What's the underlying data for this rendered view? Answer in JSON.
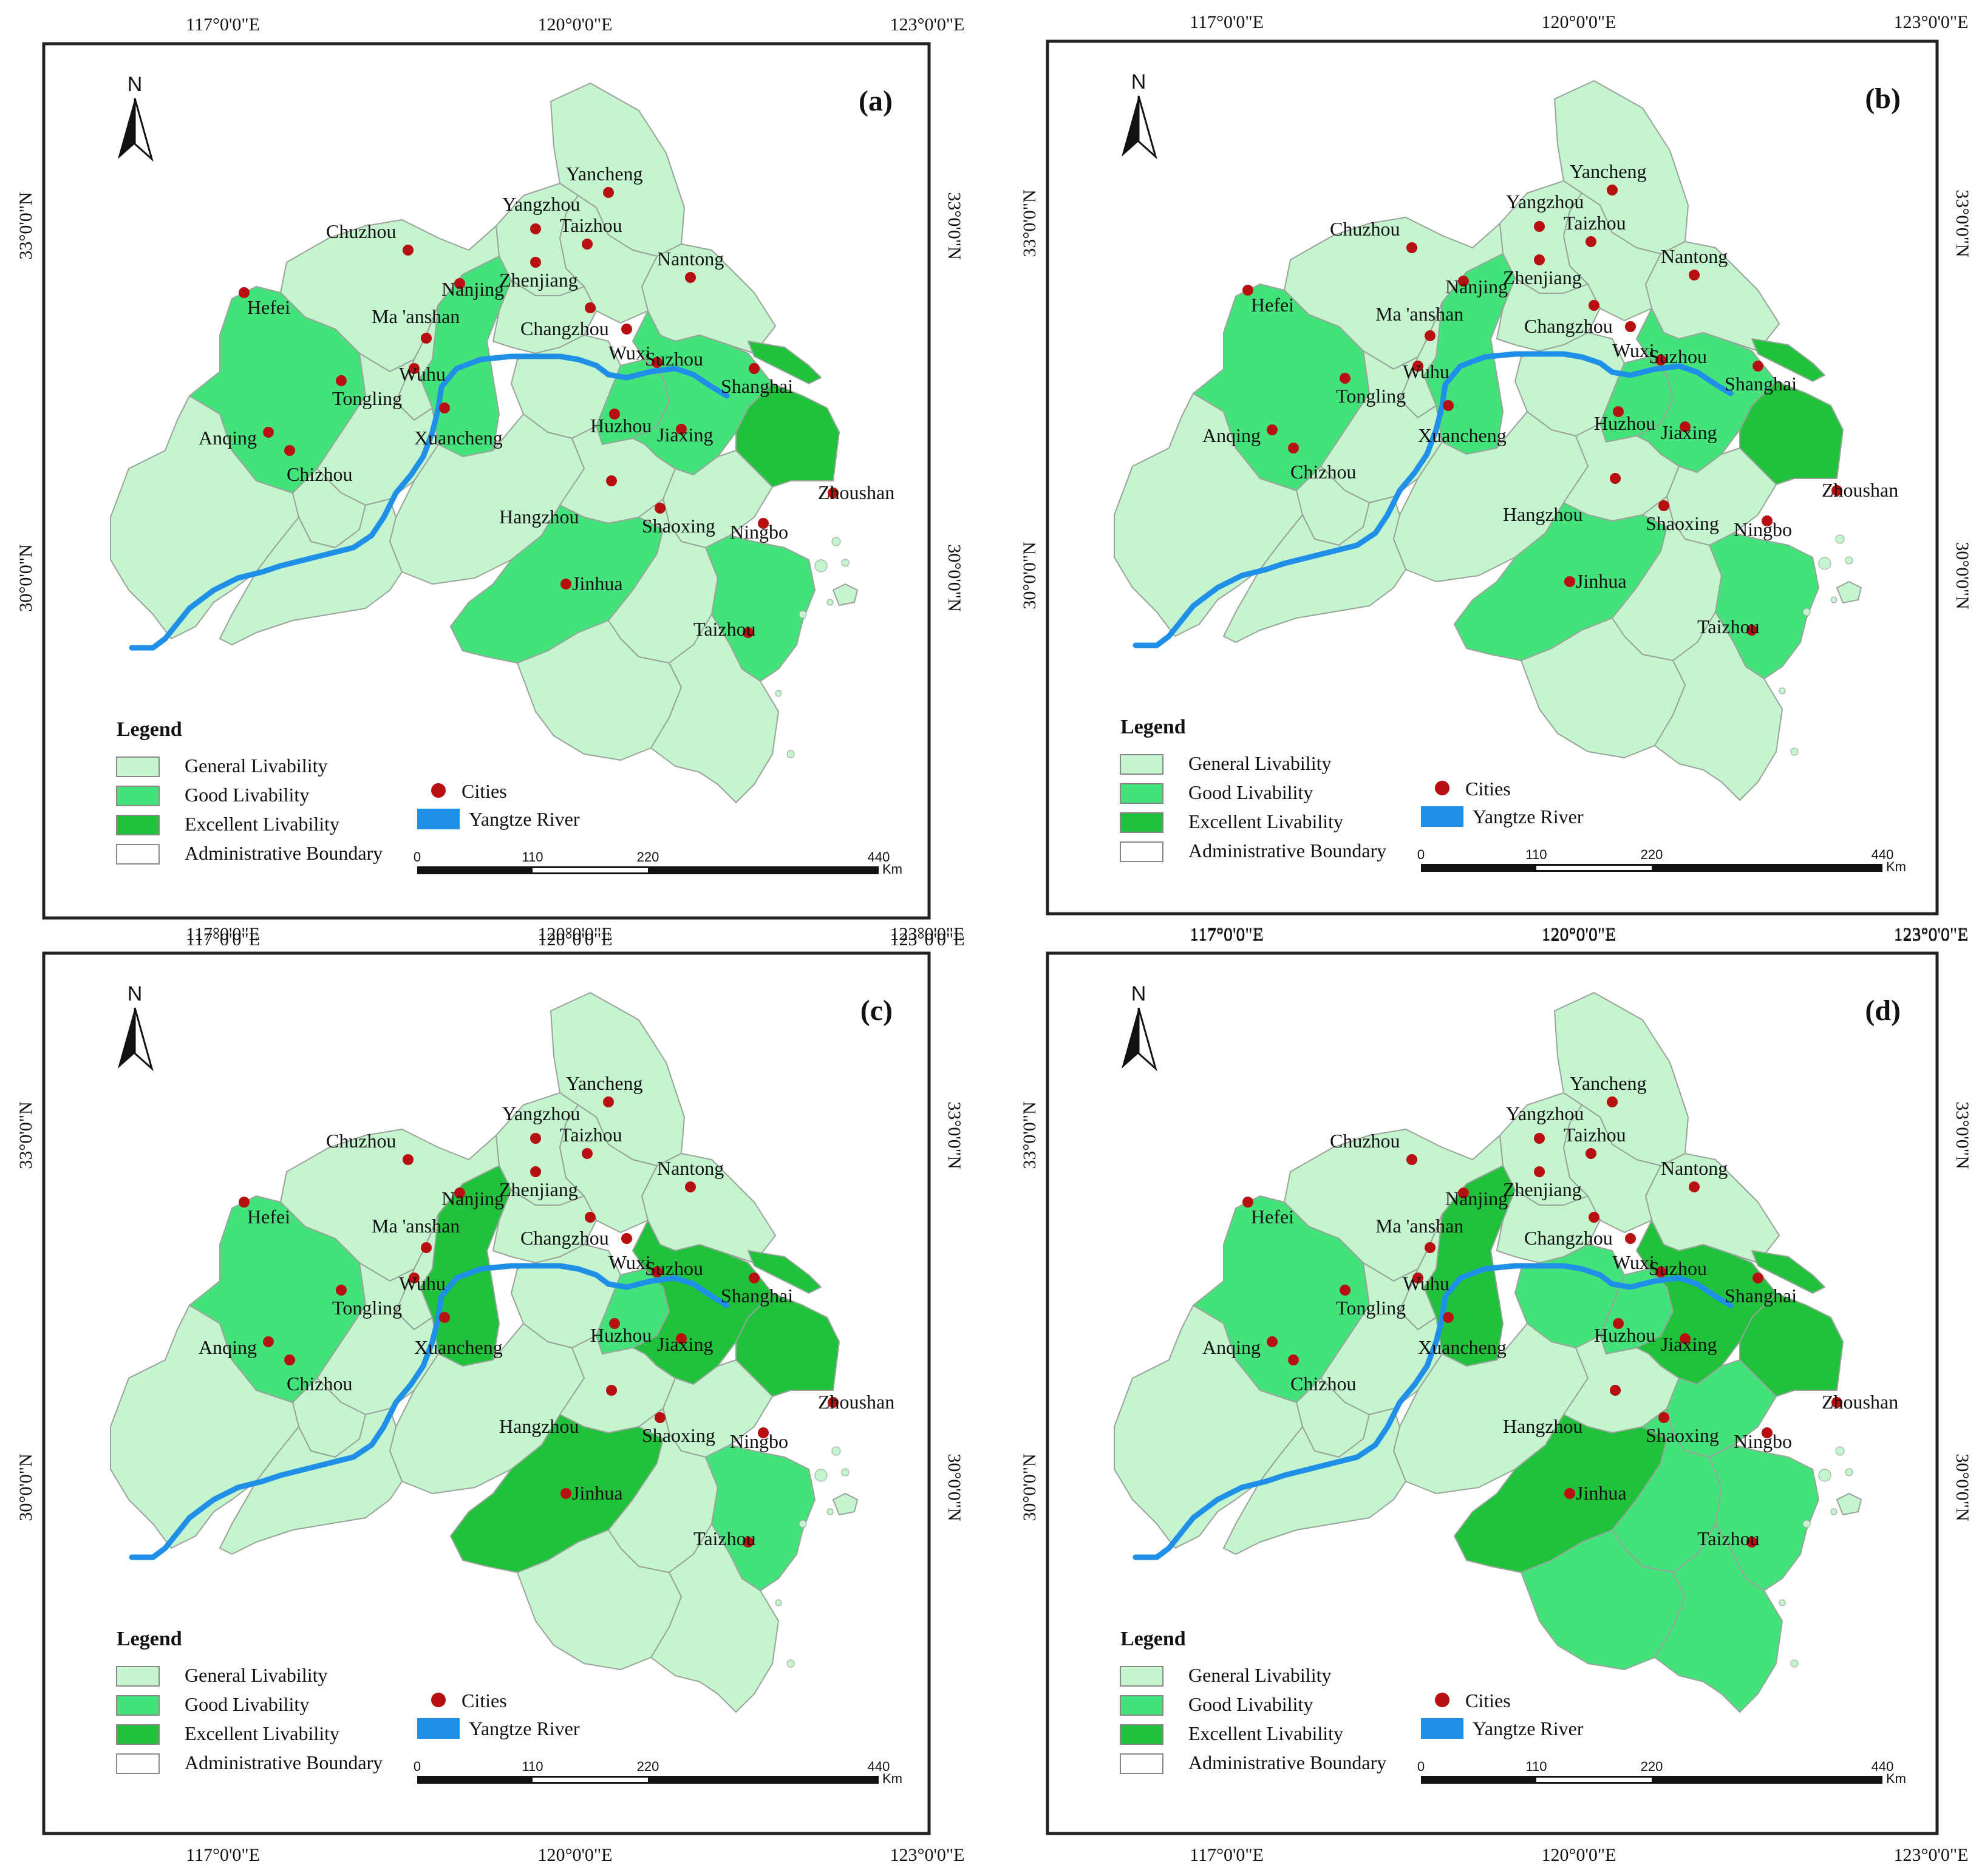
{
  "colors": {
    "general": "#c4f5cf",
    "good": "#44e27a",
    "excellent": "#20c23c",
    "river": "#1f8fe8",
    "city": "#b80f10",
    "boundary": "#ffffff"
  },
  "axes": {
    "lon_labels": [
      "117°0'0\"E",
      "120°0'0\"E",
      "123°0'0\"E"
    ],
    "lat_labels": [
      "33°0'0\"N",
      "30°0'0\"N"
    ]
  },
  "north_label": "N",
  "legend": {
    "title": "Legend",
    "items": [
      {
        "label": "General Livability",
        "class": "general"
      },
      {
        "label": "Good Livability",
        "class": "good"
      },
      {
        "label": "Excellent Livability",
        "class": "excellent"
      },
      {
        "label": "Administrative Boundary",
        "class": "boundary"
      }
    ],
    "cities_label": "Cities",
    "river_label": "Yangtze River"
  },
  "scale_bar": {
    "ticks": [
      "0",
      "110",
      "220",
      "440"
    ],
    "unit": "Km"
  },
  "city_names": [
    "Yancheng",
    "Yangzhou",
    "Taizhou",
    "Chuzhou",
    "Nanjing",
    "Zhenjiang",
    "Nantong",
    "Hefei",
    "Ma 'anshan",
    "Changzhou",
    "Wuxi",
    "Suzhou",
    "Shanghai",
    "Wuhu",
    "Tongling",
    "Anqing",
    "Xuancheng",
    "Huzhou",
    "Jiaxing",
    "Chizhou",
    "Hangzhou",
    "Shaoxing",
    "Ningbo",
    "Zhoushan",
    "Jinhua",
    "Taizhou (Zhejiang)"
  ],
  "city_display": {
    "Taizhou (Zhejiang)": "Taizhou"
  },
  "panels": [
    {
      "label": "(a)",
      "classes": {
        "Yancheng": "general",
        "Yangzhou": "general",
        "Taizhou": "general",
        "Chuzhou": "general",
        "Nanjing": "good",
        "Zhenjiang": "general",
        "Nantong": "general",
        "Hefei": "good",
        "Ma 'anshan": "general",
        "Changzhou": "general",
        "Wuxi": "good",
        "Suzhou": "good",
        "Shanghai": "excellent",
        "Wuhu": "general",
        "Tongling": "general",
        "Anqing": "general",
        "Xuancheng": "general",
        "Huzhou": "general",
        "Jiaxing": "general",
        "Chizhou": "general",
        "Hangzhou": "good",
        "Shaoxing": "general",
        "Ningbo": "good",
        "Zhoushan": "general",
        "Jinhua": "general",
        "Taizhou (Zhejiang)": "general"
      }
    },
    {
      "label": "(b)",
      "classes": {
        "Yancheng": "general",
        "Yangzhou": "general",
        "Taizhou": "general",
        "Chuzhou": "general",
        "Nanjing": "good",
        "Zhenjiang": "general",
        "Nantong": "general",
        "Hefei": "good",
        "Ma 'anshan": "general",
        "Changzhou": "general",
        "Wuxi": "good",
        "Suzhou": "good",
        "Shanghai": "excellent",
        "Wuhu": "general",
        "Tongling": "general",
        "Anqing": "general",
        "Xuancheng": "general",
        "Huzhou": "general",
        "Jiaxing": "general",
        "Chizhou": "general",
        "Hangzhou": "good",
        "Shaoxing": "general",
        "Ningbo": "good",
        "Zhoushan": "general",
        "Jinhua": "general",
        "Taizhou (Zhejiang)": "general"
      }
    },
    {
      "label": "(c)",
      "classes": {
        "Yancheng": "general",
        "Yangzhou": "general",
        "Taizhou": "general",
        "Chuzhou": "general",
        "Nanjing": "excellent",
        "Zhenjiang": "general",
        "Nantong": "general",
        "Hefei": "good",
        "Ma 'anshan": "general",
        "Changzhou": "general",
        "Wuxi": "good",
        "Suzhou": "excellent",
        "Shanghai": "excellent",
        "Wuhu": "general",
        "Tongling": "general",
        "Anqing": "general",
        "Xuancheng": "general",
        "Huzhou": "general",
        "Jiaxing": "general",
        "Chizhou": "general",
        "Hangzhou": "excellent",
        "Shaoxing": "general",
        "Ningbo": "good",
        "Zhoushan": "general",
        "Jinhua": "general",
        "Taizhou (Zhejiang)": "general"
      }
    },
    {
      "label": "(d)",
      "classes": {
        "Yancheng": "general",
        "Yangzhou": "general",
        "Taizhou": "general",
        "Chuzhou": "general",
        "Nanjing": "excellent",
        "Zhenjiang": "general",
        "Nantong": "general",
        "Hefei": "good",
        "Ma 'anshan": "general",
        "Changzhou": "good",
        "Wuxi": "good",
        "Suzhou": "excellent",
        "Shanghai": "excellent",
        "Wuhu": "general",
        "Tongling": "general",
        "Anqing": "general",
        "Xuancheng": "general",
        "Huzhou": "general",
        "Jiaxing": "good",
        "Chizhou": "general",
        "Hangzhou": "excellent",
        "Shaoxing": "good",
        "Ningbo": "good",
        "Zhoushan": "general",
        "Jinhua": "good",
        "Taizhou (Zhejiang)": "good"
      }
    }
  ]
}
